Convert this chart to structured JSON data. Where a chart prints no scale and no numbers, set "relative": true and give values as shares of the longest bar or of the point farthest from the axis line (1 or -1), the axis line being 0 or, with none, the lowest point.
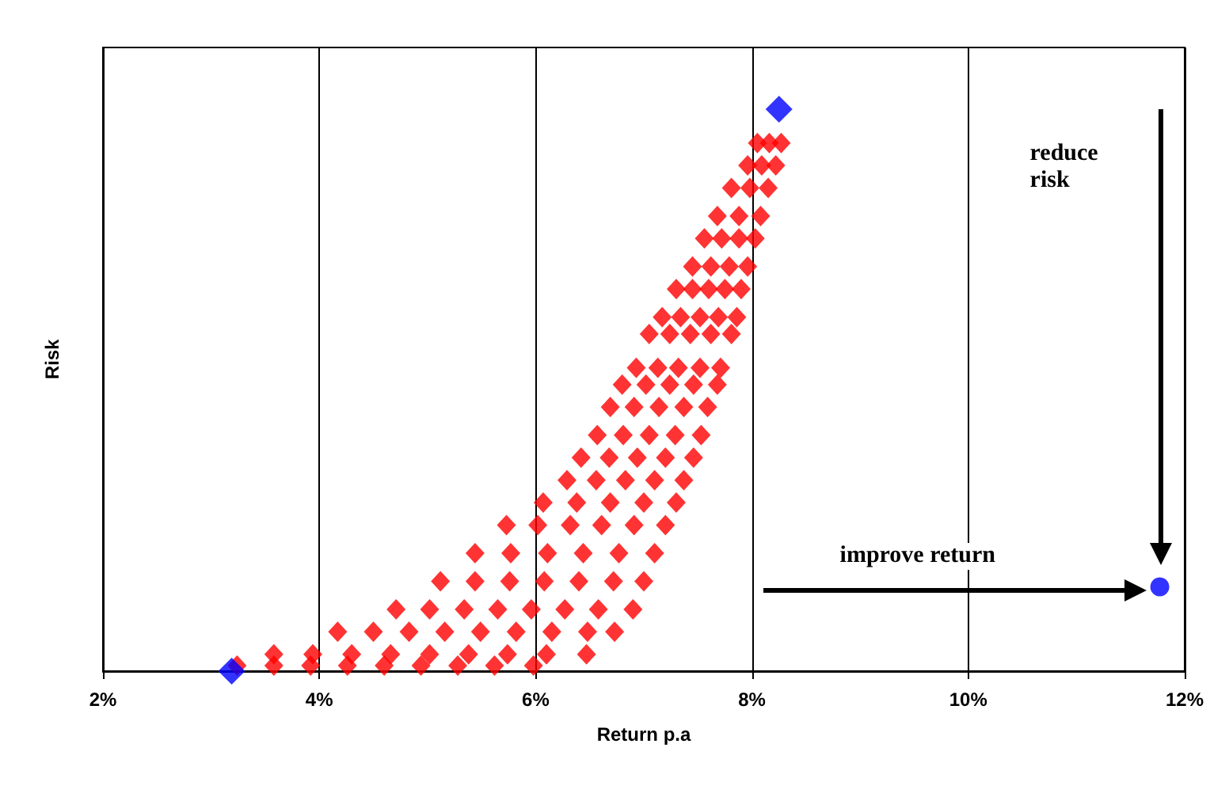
{
  "chart_data": {
    "type": "scatter",
    "xlabel": "Return p.a",
    "ylabel": "Risk",
    "relative": true,
    "xlim": [
      2,
      12
    ],
    "xticks": [
      {
        "value": 2,
        "label": "2%"
      },
      {
        "value": 4,
        "label": "4%"
      },
      {
        "value": 6,
        "label": "6%"
      },
      {
        "value": 8,
        "label": "8%"
      },
      {
        "value": 10,
        "label": "10%"
      },
      {
        "value": 12,
        "label": "12%"
      }
    ],
    "grid": "x",
    "tick_labels": "x",
    "series": [
      {
        "color": "#ff0000",
        "marker": "diamond",
        "x": [
          8.05,
          8.16,
          8.27,
          7.96,
          8.09,
          8.22,
          7.81,
          7.98,
          8.15,
          7.68,
          7.88,
          8.08,
          7.56,
          7.72,
          7.88,
          8.03,
          7.45,
          7.62,
          7.79,
          7.96,
          7.3,
          7.45,
          7.6,
          7.75,
          7.9,
          7.17,
          7.34,
          7.52,
          7.69,
          7.86,
          7.05,
          7.24,
          7.43,
          7.62,
          7.81,
          6.93,
          7.13,
          7.32,
          7.52,
          7.71,
          6.8,
          7.02,
          7.24,
          7.46,
          7.68,
          6.69,
          6.91,
          7.14,
          7.37,
          7.59,
          6.57,
          6.81,
          7.05,
          7.29,
          7.53,
          6.42,
          6.68,
          6.94,
          7.2,
          7.46,
          6.29,
          6.56,
          6.83,
          7.1,
          7.37,
          6.07,
          6.38,
          6.69,
          7.0,
          7.3,
          5.73,
          6.02,
          6.32,
          6.61,
          6.91,
          7.2,
          5.44,
          5.77,
          6.11,
          6.44,
          6.77,
          7.1,
          5.12,
          5.44,
          5.76,
          6.08,
          6.4,
          6.72,
          7.0,
          4.71,
          5.02,
          5.34,
          5.65,
          5.96,
          6.27,
          6.58,
          6.9,
          4.17,
          4.5,
          4.83,
          5.16,
          5.49,
          5.82,
          6.15,
          6.48,
          6.73,
          3.58,
          3.94,
          4.3,
          4.66,
          5.02,
          5.38,
          5.74,
          6.1,
          6.47,
          3.24,
          3.58,
          3.92,
          4.26,
          4.6,
          4.94,
          5.28,
          5.62,
          5.98
        ],
        "values": [
          0.94,
          0.94,
          0.94,
          0.9,
          0.9,
          0.9,
          0.86,
          0.86,
          0.86,
          0.81,
          0.81,
          0.81,
          0.77,
          0.77,
          0.77,
          0.77,
          0.72,
          0.72,
          0.72,
          0.72,
          0.68,
          0.68,
          0.68,
          0.68,
          0.68,
          0.63,
          0.63,
          0.63,
          0.63,
          0.63,
          0.6,
          0.6,
          0.6,
          0.6,
          0.6,
          0.54,
          0.54,
          0.54,
          0.54,
          0.54,
          0.51,
          0.51,
          0.51,
          0.51,
          0.51,
          0.47,
          0.47,
          0.47,
          0.47,
          0.47,
          0.42,
          0.42,
          0.42,
          0.42,
          0.42,
          0.38,
          0.38,
          0.38,
          0.38,
          0.38,
          0.34,
          0.34,
          0.34,
          0.34,
          0.34,
          0.3,
          0.3,
          0.3,
          0.3,
          0.3,
          0.26,
          0.26,
          0.26,
          0.26,
          0.26,
          0.26,
          0.21,
          0.21,
          0.21,
          0.21,
          0.21,
          0.21,
          0.16,
          0.16,
          0.16,
          0.16,
          0.16,
          0.16,
          0.16,
          0.11,
          0.11,
          0.11,
          0.11,
          0.11,
          0.11,
          0.11,
          0.11,
          0.07,
          0.07,
          0.07,
          0.07,
          0.07,
          0.07,
          0.07,
          0.07,
          0.07,
          0.03,
          0.03,
          0.03,
          0.03,
          0.03,
          0.03,
          0.03,
          0.03,
          0.03,
          0.01,
          0.01,
          0.01,
          0.01,
          0.01,
          0.01,
          0.01,
          0.01,
          0.01
        ]
      },
      {
        "color": "#0000ff",
        "marker": "diamond",
        "x": [
          3.19,
          8.25
        ],
        "values": [
          0,
          1
        ]
      },
      {
        "color": "#0000ff",
        "marker": "circle",
        "x": [
          11.77
        ],
        "values": [
          0.15
        ]
      }
    ],
    "annotations": [
      "improve return",
      "reduce risk"
    ]
  }
}
